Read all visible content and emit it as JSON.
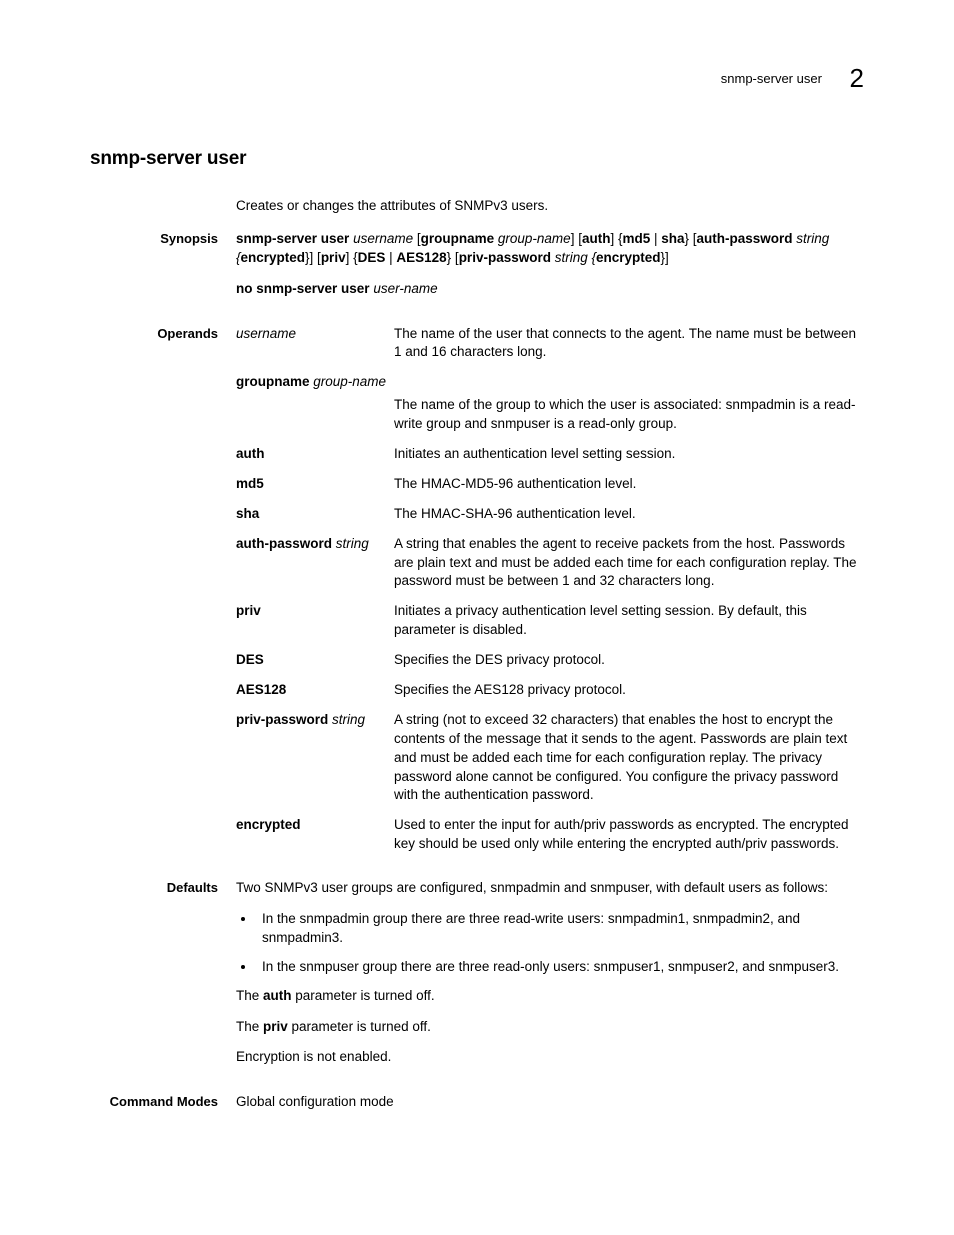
{
  "header": {
    "running": "snmp-server user",
    "chapter_number": "2"
  },
  "title": "snmp-server user",
  "intro": "Creates or changes the attributes of SNMPv3 users.",
  "synopsis": {
    "label": "Synopsis",
    "line1": {
      "p1": "snmp-server user ",
      "p2": "username ",
      "p3": "[",
      "p4": "groupname ",
      "p5": "group-name",
      "p6": "] [",
      "p7": "auth",
      "p8": "] {",
      "p9": "md5",
      "p10": " | ",
      "p11": "sha",
      "p12": "} [",
      "p13": "auth-password ",
      "p14": "string ",
      "p15": "{",
      "p16": "encrypted",
      "p17": "}] [",
      "p18": "priv",
      "p19": "] {",
      "p20": "DES",
      "p21": " | ",
      "p22": "AES128",
      "p23": "} [",
      "p24": "priv-password ",
      "p25": "string ",
      "p26": "{",
      "p27": "encrypted",
      "p28": "}]"
    },
    "line2": {
      "p1": "no snmp-server user ",
      "p2": "user-name"
    }
  },
  "operands": {
    "label": "Operands",
    "rows": [
      {
        "term_b": "",
        "term_i": "username",
        "def": "The name of the user that connects to the agent. The name must be between 1 and 16 characters long."
      },
      {
        "term_b": "groupname ",
        "term_i": "group-name",
        "def": "The name of the group to which the user is associated: snmpadmin is a read-write group and snmpuser is a read-only group.",
        "stack": true
      },
      {
        "term_b": "auth",
        "term_i": "",
        "def": "Initiates an authentication level setting session."
      },
      {
        "term_b": "md5",
        "term_i": "",
        "def": "The HMAC-MD5-96 authentication level."
      },
      {
        "term_b": "sha",
        "term_i": "",
        "def": "The HMAC-SHA-96 authentication level."
      },
      {
        "term_b": "auth-password ",
        "term_i": "string",
        "def": "A string that enables the agent to receive packets from the host. Passwords are plain text and must be added each time for each configuration replay. The password must be between 1 and 32 characters long."
      },
      {
        "term_b": "priv",
        "term_i": "",
        "def": "Initiates a privacy authentication level setting session. By default, this parameter is disabled."
      },
      {
        "term_b": "DES",
        "term_i": "",
        "def": "Specifies the DES privacy protocol."
      },
      {
        "term_b": "AES128",
        "term_i": "",
        "def": "Specifies the AES128 privacy protocol."
      },
      {
        "term_b": "priv-password ",
        "term_i": "string",
        "def": "A string (not to exceed 32 characters) that enables the host to encrypt the contents of the message that it sends to the agent. Passwords are plain text and must be added each time for each configuration replay. The privacy password alone cannot be configured. You configure the privacy password with the authentication password."
      },
      {
        "term_b": "encrypted",
        "term_i": "",
        "def": "Used to enter the input for auth/priv passwords as encrypted. The encrypted key should be used only while entering the encrypted auth/priv passwords."
      }
    ]
  },
  "defaults": {
    "label": "Defaults",
    "intro": "Two SNMPv3 user groups are configured, snmpadmin and snmpuser, with default users as follows:",
    "bullets": [
      "In the snmpadmin group there are three read-write users: snmpadmin1, snmpadmin2, and snmpadmin3.",
      "In the snmpuser group there are three read-only users: snmpuser1, snmpuser2, and snmpuser3."
    ],
    "p1_a": "The ",
    "p1_b": "auth",
    "p1_c": " parameter is turned off.",
    "p2_a": "The ",
    "p2_b": "priv",
    "p2_c": " parameter is turned off.",
    "p3": "Encryption is not enabled."
  },
  "command_modes": {
    "label": "Command Modes",
    "text": "Global configuration mode"
  }
}
